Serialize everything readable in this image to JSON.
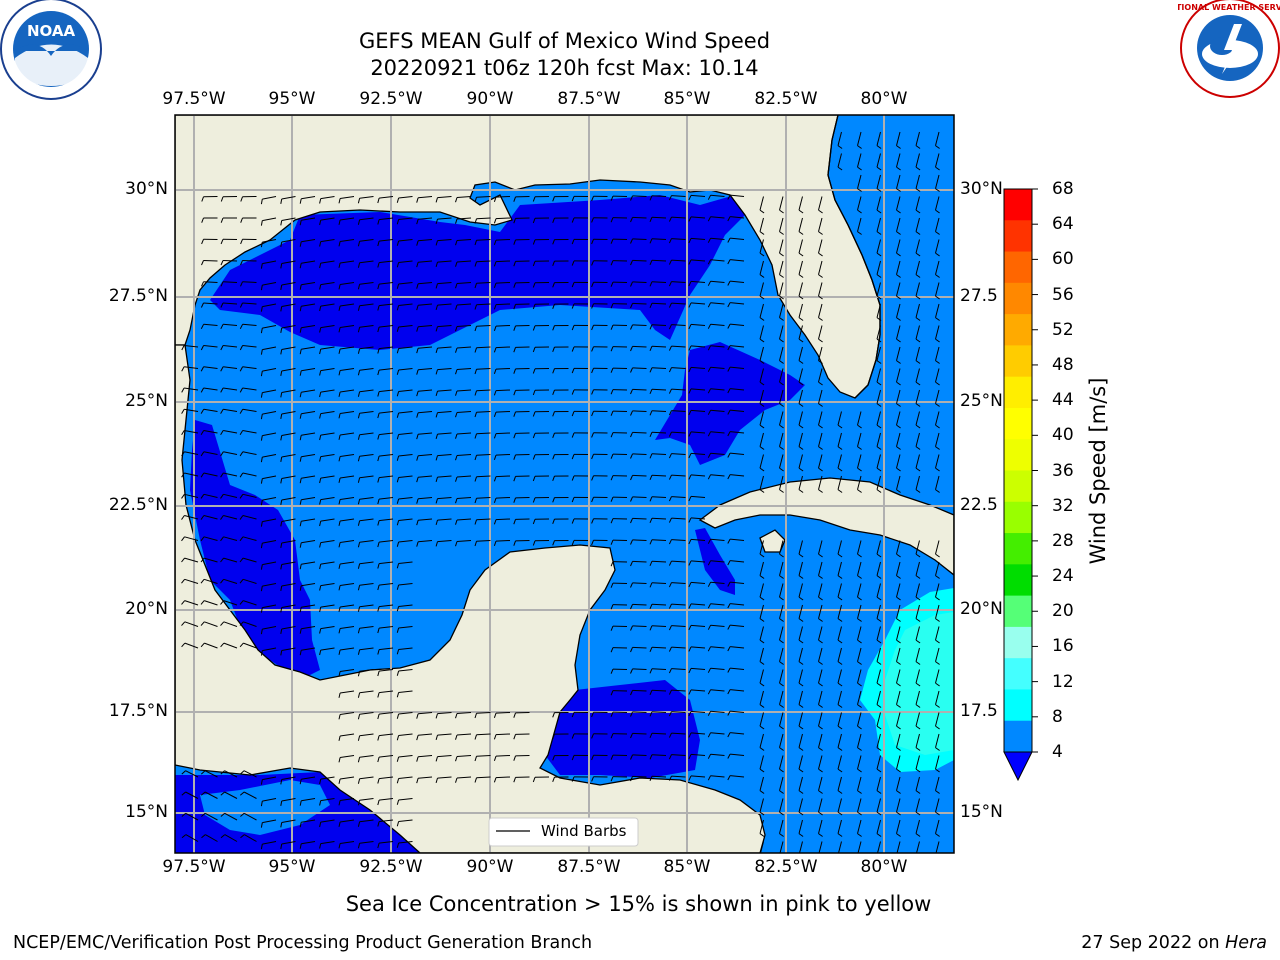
{
  "title": {
    "line1": "GEFS MEAN Gulf of Mexico Wind Speed",
    "line2": "20220921 t06z 120h fcst   Max: 10.14"
  },
  "axes": {
    "longitude_ticks": [
      "97.5°W",
      "95°W",
      "92.5°W",
      "90°W",
      "87.5°W",
      "85°W",
      "82.5°W",
      "80°W"
    ],
    "latitude_ticks_left": [
      "30°N",
      "27.5°N",
      "25°N",
      "22.5°N",
      "20°N",
      "17.5°N",
      "15°N"
    ],
    "latitude_ticks_right": [
      "30°N",
      "27.5",
      "25°N",
      "22.5",
      "20°N",
      "17.5",
      "15°N"
    ]
  },
  "legend": {
    "label": "Wind Barbs"
  },
  "colorbar": {
    "label": "Wind Speed [m/s]",
    "ticks": [
      "68",
      "64",
      "60",
      "56",
      "52",
      "48",
      "44",
      "40",
      "36",
      "32",
      "28",
      "24",
      "20",
      "16",
      "12",
      "8",
      "4"
    ],
    "colors": [
      "#ff0000",
      "#ff3300",
      "#ff6600",
      "#ff8800",
      "#ffaa00",
      "#ffcc00",
      "#ffee00",
      "#ffff00",
      "#eeff00",
      "#ccff00",
      "#99ff00",
      "#44ee00",
      "#00dd00",
      "#55ff77",
      "#99ffee",
      "#44ffff",
      "#00ffff",
      "#0088ff"
    ],
    "extend_color": "#0000ff"
  },
  "note": "Sea Ice Concentration > 15% is shown in pink to yellow",
  "footer": {
    "left": "NCEP/EMC/Verification Post Processing Product Generation Branch",
    "right_date": "27 Sep 2022 on ",
    "right_host": "Hera"
  },
  "logos": {
    "left": "NOAA",
    "right": "NATIONAL WEATHER SERVICE"
  },
  "colors": {
    "land": "#eeeedd",
    "wind_4_8": "#0088ff",
    "wind_below_4": "#0000ee",
    "wind_8_12": "#00ffff",
    "grid": "#b0b0b0"
  }
}
